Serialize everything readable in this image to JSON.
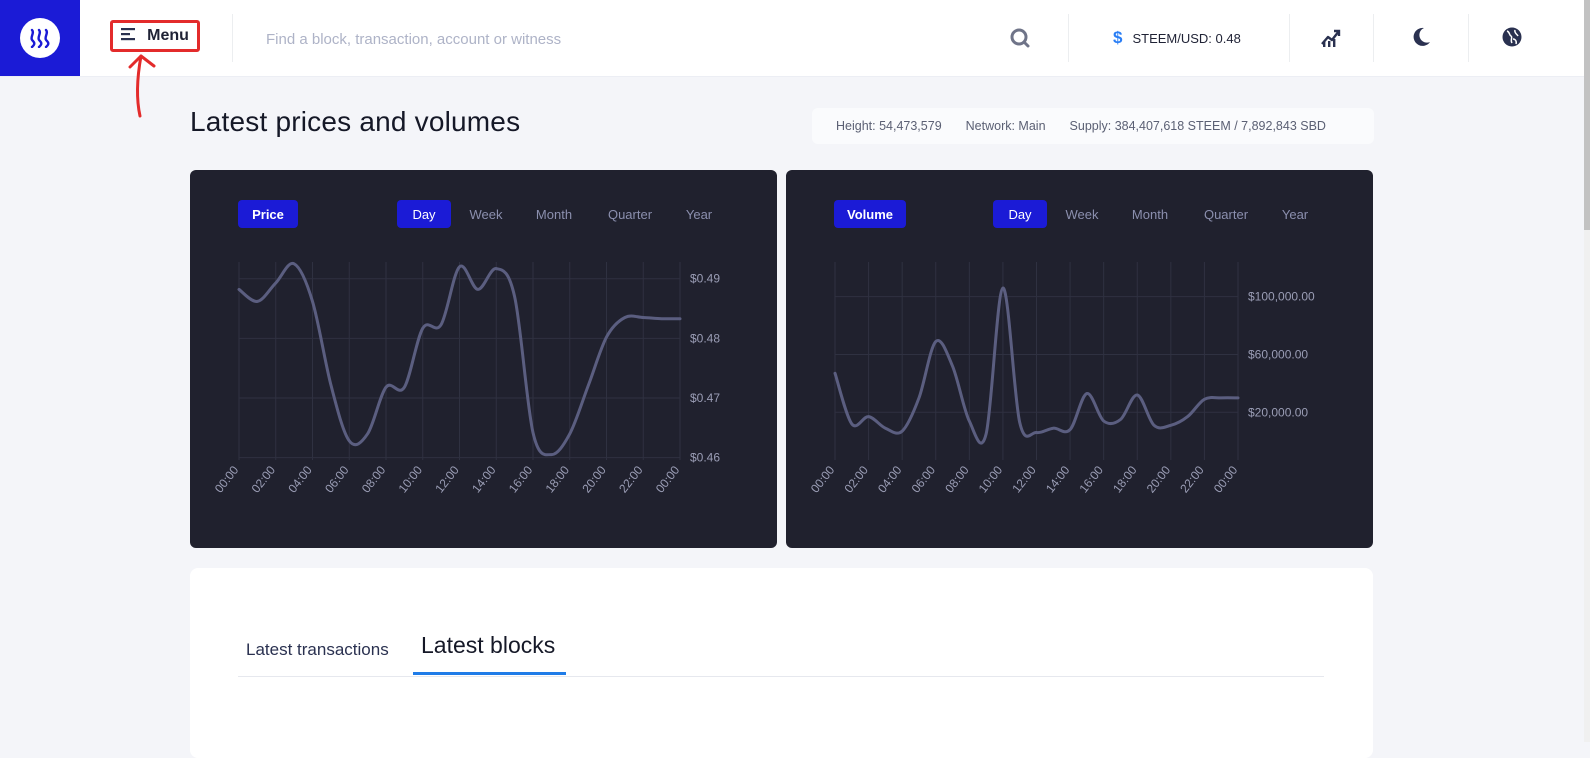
{
  "header": {
    "menu_label": "Menu",
    "search_placeholder": "Find a block, transaction, account or witness",
    "price_label": "STEEM/USD: 0.48",
    "icons": [
      "steem-logo-icon",
      "menu-icon",
      "search-icon",
      "dollar-icon",
      "chart-trend-icon",
      "moon-icon",
      "globe-icon"
    ]
  },
  "page": {
    "title": "Latest prices and volumes",
    "stats": {
      "height": "Height: 54,473,579",
      "network": "Network: Main",
      "supply": "Supply: 384,407,618 STEEM / 7,892,843 SBD"
    }
  },
  "charts": {
    "price": {
      "metric_label": "Price",
      "ranges": [
        "Day",
        "Week",
        "Month",
        "Quarter",
        "Year"
      ],
      "active_range": "Day"
    },
    "volume": {
      "metric_label": "Volume",
      "ranges": [
        "Day",
        "Week",
        "Month",
        "Quarter",
        "Year"
      ],
      "active_range": "Day"
    }
  },
  "chart_data": [
    {
      "type": "line",
      "title": "",
      "xlabel": "",
      "ylabel": "",
      "x": [
        "00:00",
        "01:00",
        "02:00",
        "03:00",
        "04:00",
        "05:00",
        "06:00",
        "07:00",
        "08:00",
        "09:00",
        "10:00",
        "11:00",
        "12:00",
        "13:00",
        "14:00",
        "15:00",
        "16:00",
        "17:00",
        "18:00",
        "19:00",
        "20:00",
        "21:00",
        "22:00",
        "23:00",
        "00:00"
      ],
      "x_tick_labels": [
        "00:00",
        "02:00",
        "04:00",
        "06:00",
        "08:00",
        "10:00",
        "12:00",
        "14:00",
        "16:00",
        "18:00",
        "20:00",
        "22:00",
        "00:00"
      ],
      "series": [
        {
          "values": [
            0.4882,
            0.4862,
            0.4893,
            0.4925,
            0.4862,
            0.4722,
            0.4628,
            0.464,
            0.4718,
            0.4718,
            0.4817,
            0.4823,
            0.492,
            0.4882,
            0.4917,
            0.487,
            0.4642,
            0.4605,
            0.464,
            0.472,
            0.4802,
            0.4835,
            0.4835,
            0.4833,
            0.4833
          ]
        }
      ],
      "y_tick_labels": [
        "$0.46",
        "$0.47",
        "$0.48",
        "$0.49"
      ],
      "ylim": [
        0.4596,
        0.4928
      ],
      "grid": true,
      "color": "#5b5e80"
    },
    {
      "type": "line",
      "title": "",
      "xlabel": "",
      "ylabel": "",
      "x": [
        "00:00",
        "01:00",
        "02:00",
        "03:00",
        "04:00",
        "05:00",
        "06:00",
        "07:00",
        "08:00",
        "09:00",
        "10:00",
        "11:00",
        "12:00",
        "13:00",
        "14:00",
        "15:00",
        "16:00",
        "17:00",
        "18:00",
        "19:00",
        "20:00",
        "21:00",
        "22:00",
        "23:00",
        "00:00"
      ],
      "x_tick_labels": [
        "00:00",
        "02:00",
        "04:00",
        "06:00",
        "08:00",
        "10:00",
        "12:00",
        "14:00",
        "16:00",
        "18:00",
        "20:00",
        "22:00",
        "00:00"
      ],
      "series": [
        {
          "values": [
            47000,
            12000,
            17000,
            9000,
            7000,
            30000,
            69000,
            52000,
            14000,
            5000,
            106000,
            13000,
            6000,
            9000,
            8000,
            33000,
            14000,
            15000,
            32000,
            11000,
            11000,
            17000,
            29000,
            30000,
            30000
          ]
        }
      ],
      "y_tick_labels": [
        "$20,000.00",
        "$60,000.00",
        "$100,000.00"
      ],
      "ylim": [
        -13000,
        124000
      ],
      "grid": true,
      "color": "#5b5e80"
    }
  ],
  "tabs": {
    "latest_transactions": "Latest transactions",
    "latest_blocks": "Latest blocks",
    "active": "Latest blocks"
  }
}
